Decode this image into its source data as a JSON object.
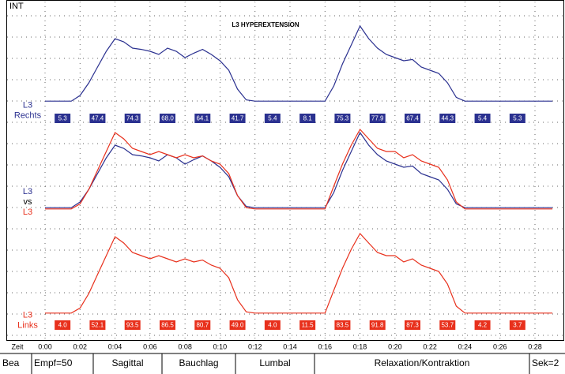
{
  "screen": {
    "corner_label": "INT",
    "time_label": "Zeit",
    "status_bar": [
      "Bea",
      "Empf=50",
      "Sagittal",
      "Bauchlag",
      "Lumbal",
      "Relaxation/Kontraktion",
      "Sek=2"
    ]
  },
  "chart_data": {
    "type": "line",
    "title": "L3 HYPEREXTENSION",
    "panels": [
      {
        "label": [
          "L3",
          "Rechts"
        ]
      },
      {
        "label": [
          "L3",
          "vs",
          "L3"
        ]
      },
      {
        "label": [
          "L3",
          "Links"
        ]
      }
    ],
    "x": [
      0,
      0.5,
      1,
      1.5,
      2,
      2.5,
      3,
      3.5,
      4,
      4.5,
      5,
      5.5,
      6,
      6.5,
      7,
      7.5,
      8,
      8.5,
      9,
      9.5,
      10,
      10.5,
      11,
      11.5,
      12,
      12.5,
      13,
      13.5,
      14,
      14.5,
      15,
      15.5,
      16,
      16.5,
      17,
      17.5,
      18,
      18.5,
      19,
      19.5,
      20,
      20.5,
      21,
      21.5,
      22,
      22.5,
      23,
      23.5,
      24,
      24.5,
      25,
      25.5,
      26,
      26.5,
      27,
      27.5,
      28,
      28.5,
      29
    ],
    "xlim": [
      0,
      29
    ],
    "xticks": [
      {
        "value": 0,
        "label": "0:00"
      },
      {
        "value": 2,
        "label": "0:02"
      },
      {
        "value": 4,
        "label": "0:04"
      },
      {
        "value": 6,
        "label": "0:06"
      },
      {
        "value": 8,
        "label": "0:08"
      },
      {
        "value": 10,
        "label": "0:10"
      },
      {
        "value": 12,
        "label": "0:12"
      },
      {
        "value": 14,
        "label": "0:14"
      },
      {
        "value": 16,
        "label": "0:16"
      },
      {
        "value": 18,
        "label": "0:18"
      },
      {
        "value": 20,
        "label": "0:20"
      },
      {
        "value": 22,
        "label": "0:22"
      },
      {
        "value": 24,
        "label": "0:24"
      },
      {
        "value": 26,
        "label": "0:26"
      },
      {
        "value": 28,
        "label": "0:28"
      }
    ],
    "grid": true,
    "series": [
      {
        "color": "#2b3190",
        "values": [
          6,
          6,
          6,
          6,
          15,
          35,
          60,
          85,
          105,
          100,
          90,
          88,
          85,
          80,
          90,
          85,
          75,
          82,
          88,
          80,
          70,
          55,
          25,
          8,
          6,
          6,
          6,
          6,
          6,
          6,
          6,
          6,
          6,
          30,
          65,
          95,
          125,
          105,
          90,
          80,
          75,
          70,
          72,
          60,
          55,
          50,
          35,
          12,
          6,
          6,
          6,
          6,
          6,
          6,
          6,
          6,
          6,
          6,
          6
        ],
        "segment_values": [
          5.3,
          47.4,
          74.3,
          68,
          64.1,
          41.7,
          5.4,
          8.1,
          75.3,
          77.9,
          67.4,
          44.3,
          5.4,
          5.3
        ],
        "value_labels": [
          "5.3",
          "47.4",
          "74.3",
          "68.0",
          "64.1",
          "41.7",
          "5.4",
          "8.1",
          "75.3",
          "77.9",
          "67.4",
          "44.3",
          "5.4",
          "5.3"
        ]
      },
      {
        "color": "#e8301c",
        "values": [
          4,
          4,
          4,
          4,
          12,
          35,
          65,
          95,
          125,
          115,
          100,
          95,
          90,
          95,
          90,
          85,
          90,
          85,
          88,
          80,
          75,
          60,
          25,
          6,
          4,
          4,
          4,
          4,
          4,
          4,
          4,
          4,
          4,
          40,
          75,
          105,
          130,
          115,
          100,
          95,
          95,
          85,
          90,
          80,
          75,
          70,
          50,
          15,
          4,
          4,
          4,
          4,
          4,
          4,
          4,
          4,
          4,
          4,
          4
        ],
        "segment_values": [
          4,
          52.1,
          93.5,
          86.5,
          80.7,
          49,
          4,
          11.5,
          83.5,
          91.8,
          87.3,
          53.7,
          4.2,
          3.7
        ],
        "value_labels": [
          "4.0",
          "52.1",
          "93.5",
          "86.5",
          "80.7",
          "49.0",
          "4.0",
          "11.5",
          "83.5",
          "91.8",
          "87.3",
          "53.7",
          "4.2",
          "3.7"
        ]
      }
    ]
  }
}
